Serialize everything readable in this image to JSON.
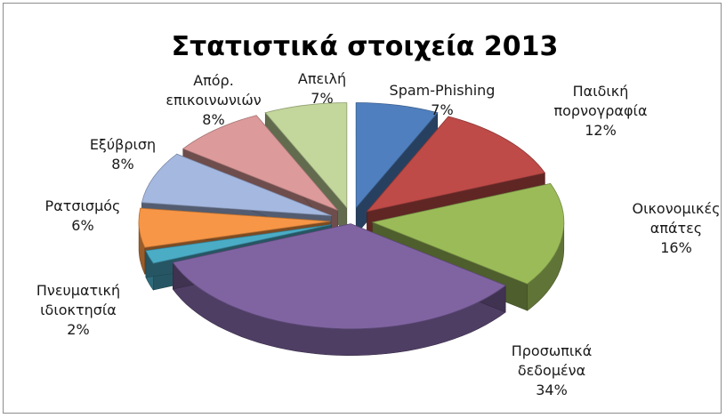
{
  "chart_data": {
    "type": "pie",
    "title": "Στατιστικά στοιχεία 2013",
    "slices": [
      {
        "label": [
          "Spam-Phishing"
        ],
        "pct_label": "7%",
        "value": 7,
        "color": "#4f7fbe"
      },
      {
        "label": [
          "Παιδική",
          "πορνογραφία"
        ],
        "pct_label": "12%",
        "value": 12,
        "color": "#be4b48"
      },
      {
        "label": [
          "Οικονομικές",
          "απάτες"
        ],
        "pct_label": "16%",
        "value": 16,
        "color": "#9bbb59"
      },
      {
        "label": [
          "Προσωπικά",
          "δεδομένα"
        ],
        "pct_label": "34%",
        "value": 34,
        "color": "#8064a2"
      },
      {
        "label": [
          "Πνευματική",
          "ιδιοκτησία"
        ],
        "pct_label": "2%",
        "value": 2,
        "color": "#4bacc6"
      },
      {
        "label": [
          "Ρατσισμός"
        ],
        "pct_label": "6%",
        "value": 6,
        "color": "#f79646"
      },
      {
        "label": [
          "Εξύβριση"
        ],
        "pct_label": "8%",
        "value": 8,
        "color": "#a5b8e0"
      },
      {
        "label": [
          "Απόρ.",
          "επικοινωνιών"
        ],
        "pct_label": "8%",
        "value": 8,
        "color": "#dc9a9a"
      },
      {
        "label": [
          "Απειλή"
        ],
        "pct_label": "7%",
        "value": 7,
        "color": "#c3d69b"
      }
    ],
    "legend": "none",
    "style": "3d-exploded-pie"
  }
}
